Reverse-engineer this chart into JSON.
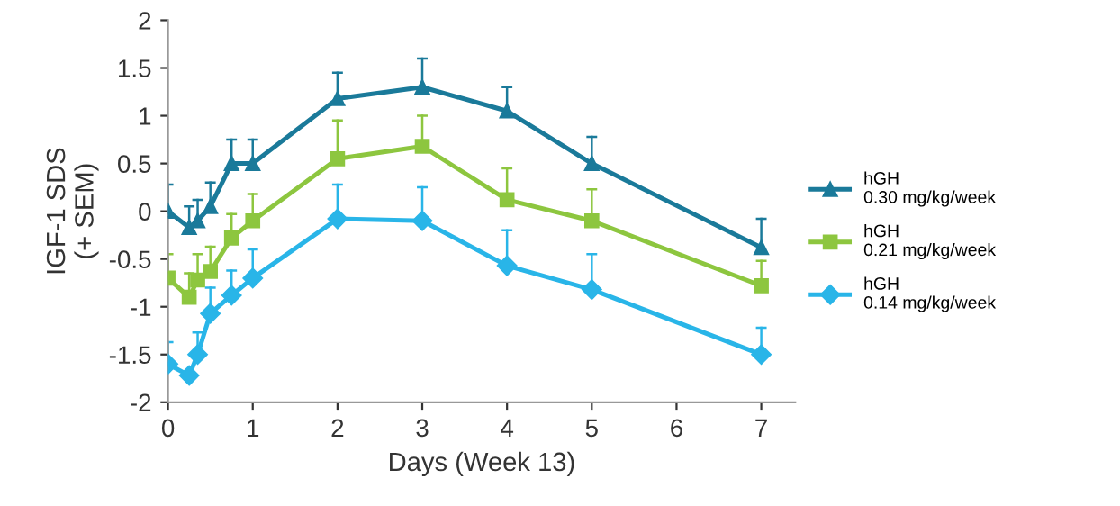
{
  "chart_data": {
    "type": "line",
    "xlabel": "Days (Week 13)",
    "ylabel": "IGF-1 SDS\n(+ SEM)",
    "x": [
      0,
      0.25,
      0.35,
      0.5,
      0.75,
      1,
      2,
      3,
      4,
      5,
      7
    ],
    "xlim": [
      0,
      7.4
    ],
    "xticks": [
      0,
      1,
      2,
      3,
      4,
      5,
      6,
      7
    ],
    "ylim": [
      -2,
      2
    ],
    "yticks": [
      -2,
      -1.5,
      -1,
      -0.5,
      0,
      0.5,
      1,
      1.5,
      2
    ],
    "grid": false,
    "legend": "right",
    "line_style": "solid",
    "series": [
      {
        "name": "hGH\n0.30 mg/kg/week",
        "color": "#1a7a9a",
        "marker": "triangle",
        "values": [
          0,
          -0.17,
          -0.1,
          0.05,
          0.5,
          0.5,
          1.18,
          1.3,
          1.05,
          0.5,
          -0.38
        ],
        "errors": [
          [
            0,
            0.28
          ],
          [
            -0.17,
            0.05
          ],
          [
            -0.1,
            0.12
          ],
          [
            0.05,
            0.3
          ],
          [
            0.5,
            0.75
          ],
          [
            0.5,
            0.75
          ],
          [
            1.18,
            1.45
          ],
          [
            1.3,
            1.6
          ],
          [
            1.05,
            1.3
          ],
          [
            0.5,
            0.78
          ],
          [
            -0.38,
            -0.08
          ]
        ]
      },
      {
        "name": "hGH\n0.21 mg/kg/week",
        "color": "#8dc63f",
        "marker": "square",
        "values": [
          -0.7,
          -0.9,
          -0.72,
          -0.63,
          -0.28,
          -0.1,
          0.55,
          0.68,
          0.12,
          -0.1,
          -0.78
        ],
        "errors": [
          [
            -0.7,
            -0.45
          ],
          [
            -0.9,
            -0.65
          ],
          [
            -0.72,
            -0.45
          ],
          [
            -0.63,
            -0.37
          ],
          [
            -0.28,
            -0.03
          ],
          [
            -0.1,
            0.18
          ],
          [
            0.55,
            0.95
          ],
          [
            0.68,
            1.0
          ],
          [
            0.12,
            0.45
          ],
          [
            -0.1,
            0.23
          ],
          [
            -0.78,
            -0.52
          ]
        ]
      },
      {
        "name": "hGH\n0.14 mg/kg/week",
        "color": "#29b5e8",
        "marker": "diamond",
        "values": [
          -1.6,
          -1.72,
          -1.5,
          -1.07,
          -0.88,
          -0.7,
          -0.08,
          -0.1,
          -0.57,
          -0.82,
          -1.5
        ],
        "errors": [
          [
            -1.6,
            -1.37
          ],
          null,
          [
            -1.5,
            -1.27
          ],
          [
            -1.07,
            -0.8
          ],
          [
            -0.88,
            -0.62
          ],
          [
            -0.7,
            -0.4
          ],
          [
            -0.08,
            0.28
          ],
          [
            -0.1,
            0.25
          ],
          [
            -0.57,
            -0.2
          ],
          [
            -0.82,
            -0.45
          ],
          [
            -1.5,
            -1.22
          ]
        ]
      }
    ]
  }
}
